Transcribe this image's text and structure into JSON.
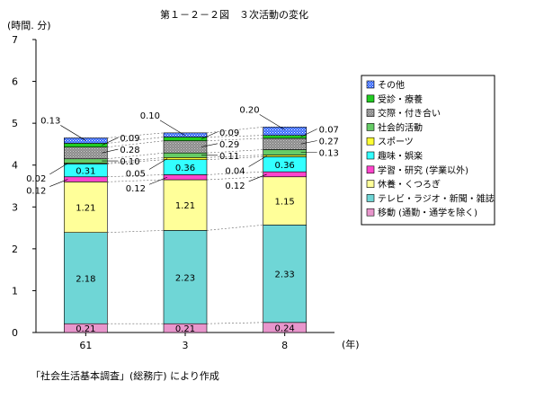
{
  "title": "第１－２－２図　３次活動の変化",
  "y_unit": "(時間. 分)",
  "x_unit": "(年)",
  "source": "「社会生活基本調査」(総務庁) により作成",
  "chart_data": {
    "type": "bar",
    "stacked": true,
    "categories": [
      "61",
      "3",
      "8"
    ],
    "ylim": [
      0,
      7
    ],
    "yticks": [
      0,
      1,
      2,
      3,
      4,
      5,
      6,
      7
    ],
    "series": [
      {
        "name": "移動 (通勤・通学を除く)",
        "values": [
          0.21,
          0.21,
          0.24
        ],
        "color": "#e896cc"
      },
      {
        "name": "テレビ・ラジオ・新聞・雑誌",
        "values": [
          2.18,
          2.23,
          2.33
        ],
        "color": "#6fd6d6"
      },
      {
        "name": "休養・くつろぎ",
        "values": [
          1.21,
          1.21,
          1.15
        ],
        "color": "#ffff99"
      },
      {
        "name": "学習・研究 (学業以外)",
        "values": [
          0.12,
          0.12,
          0.12
        ],
        "color": "#ff44cc"
      },
      {
        "name": "趣味・娯楽",
        "values": [
          0.31,
          0.36,
          0.36
        ],
        "color": "#33ffff"
      },
      {
        "name": "スポーツ",
        "values": [
          0.02,
          0.05,
          0.04
        ],
        "color": "#ffff33"
      },
      {
        "name": "社会的活動",
        "values": [
          0.1,
          0.11,
          0.13
        ],
        "color": "#66cc66"
      },
      {
        "name": "交際・付き合い",
        "values": [
          0.28,
          0.29,
          0.27
        ],
        "color": "#888888"
      },
      {
        "name": "受診・療養",
        "values": [
          0.09,
          0.09,
          0.07
        ],
        "color": "#22cc22"
      },
      {
        "name": "その他",
        "values": [
          0.13,
          0.1,
          0.2
        ],
        "color": "#3366ff"
      }
    ],
    "legend_position": "right",
    "grid": false
  }
}
